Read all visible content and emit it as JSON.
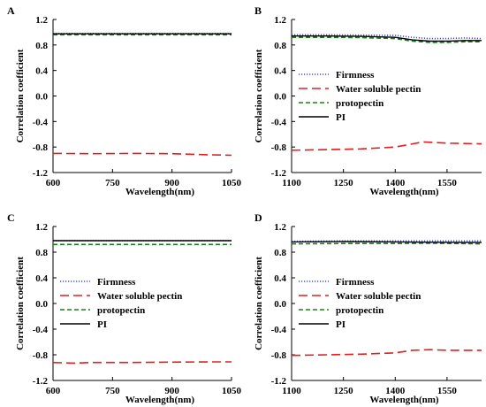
{
  "chart_data": [
    {
      "type": "line",
      "panel_label": "A",
      "xlabel": "Wavelength(nm)",
      "ylabel": "Correlation coefficient",
      "xlim": [
        600,
        1050
      ],
      "ylim": [
        -1.2,
        1.2
      ],
      "xticks": [
        "600",
        "750",
        "900",
        "1050"
      ],
      "yticks": [
        "-1.2",
        "-0.8",
        "-0.4",
        "0.0",
        "0.4",
        "0.8",
        "1.2"
      ],
      "legend": false,
      "series": [
        {
          "name": "Firmness",
          "color": "#4a4ad6",
          "dash": "dotted",
          "x": [
            600,
            750,
            900,
            1050
          ],
          "y": [
            0.98,
            0.98,
            0.98,
            0.98
          ]
        },
        {
          "name": "Water soluble pectin",
          "color": "#e02020",
          "dash": "longdash",
          "x": [
            600,
            700,
            800,
            900,
            980,
            1050
          ],
          "y": [
            -0.9,
            -0.905,
            -0.9,
            -0.905,
            -0.92,
            -0.93
          ]
        },
        {
          "name": "protopectin",
          "color": "#1e7a1e",
          "dash": "dashed",
          "x": [
            600,
            750,
            900,
            1050
          ],
          "y": [
            0.96,
            0.96,
            0.96,
            0.96
          ]
        },
        {
          "name": "PI",
          "color": "#000000",
          "dash": "solid",
          "x": [
            600,
            750,
            900,
            1050
          ],
          "y": [
            0.975,
            0.975,
            0.975,
            0.975
          ]
        }
      ]
    },
    {
      "type": "line",
      "panel_label": "B",
      "xlabel": "Wavelength(nm)",
      "ylabel": "Correlation coefficient",
      "xlim": [
        1100,
        1650
      ],
      "ylim": [
        -1.2,
        1.2
      ],
      "xticks": [
        "1100",
        "1250",
        "1400",
        "1550"
      ],
      "yticks": [
        "-1.2",
        "-0.8",
        "-0.4",
        "0.0",
        "0.4",
        "0.8",
        "1.2"
      ],
      "legend": true,
      "series": [
        {
          "name": "Firmness",
          "color": "#4a4ad6",
          "dash": "dotted",
          "x": [
            1100,
            1200,
            1300,
            1400,
            1450,
            1500,
            1550,
            1600,
            1650
          ],
          "y": [
            0.96,
            0.96,
            0.955,
            0.95,
            0.92,
            0.9,
            0.9,
            0.91,
            0.9
          ]
        },
        {
          "name": "Water soluble pectin",
          "color": "#e02020",
          "dash": "longdash",
          "x": [
            1100,
            1200,
            1300,
            1400,
            1450,
            1480,
            1550,
            1650
          ],
          "y": [
            -0.85,
            -0.84,
            -0.83,
            -0.8,
            -0.75,
            -0.72,
            -0.74,
            -0.75
          ]
        },
        {
          "name": "protopectin",
          "color": "#1e7a1e",
          "dash": "dashed",
          "x": [
            1100,
            1200,
            1300,
            1400,
            1450,
            1500,
            1550,
            1600,
            1650
          ],
          "y": [
            0.92,
            0.92,
            0.915,
            0.9,
            0.86,
            0.84,
            0.84,
            0.85,
            0.85
          ]
        },
        {
          "name": "PI",
          "color": "#000000",
          "dash": "solid",
          "x": [
            1100,
            1200,
            1300,
            1400,
            1450,
            1500,
            1550,
            1600,
            1650
          ],
          "y": [
            0.94,
            0.94,
            0.935,
            0.92,
            0.88,
            0.86,
            0.86,
            0.87,
            0.87
          ]
        }
      ]
    },
    {
      "type": "line",
      "panel_label": "C",
      "xlabel": "Wavelength(nm)",
      "ylabel": "Correlation coefficient",
      "xlim": [
        600,
        1050
      ],
      "ylim": [
        -1.2,
        1.2
      ],
      "xticks": [
        "600",
        "750",
        "900",
        "1050"
      ],
      "yticks": [
        "-1.2",
        "-0.8",
        "-0.4",
        "0.0",
        "0.4",
        "0.8",
        "1.2"
      ],
      "legend": true,
      "series": [
        {
          "name": "Firmness",
          "color": "#4a4ad6",
          "dash": "dotted",
          "x": [
            600,
            750,
            900,
            1050
          ],
          "y": [
            0.98,
            0.98,
            0.98,
            0.98
          ]
        },
        {
          "name": "Water soluble pectin",
          "color": "#e02020",
          "dash": "longdash",
          "x": [
            600,
            650,
            700,
            800,
            900,
            1000,
            1050
          ],
          "y": [
            -0.92,
            -0.93,
            -0.92,
            -0.92,
            -0.915,
            -0.91,
            -0.91
          ]
        },
        {
          "name": "protopectin",
          "color": "#1e7a1e",
          "dash": "dashed",
          "x": [
            600,
            750,
            900,
            1050
          ],
          "y": [
            0.92,
            0.92,
            0.92,
            0.92
          ]
        },
        {
          "name": "PI",
          "color": "#000000",
          "dash": "solid",
          "x": [
            600,
            750,
            900,
            1050
          ],
          "y": [
            0.98,
            0.98,
            0.98,
            0.98
          ]
        }
      ]
    },
    {
      "type": "line",
      "panel_label": "D",
      "xlabel": "Wavelength(nm)",
      "ylabel": "Correlation coefficient",
      "xlim": [
        1100,
        1650
      ],
      "ylim": [
        -1.2,
        1.2
      ],
      "xticks": [
        "1100",
        "1250",
        "1400",
        "1550"
      ],
      "yticks": [
        "-1.2",
        "-0.8",
        "-0.4",
        "0.0",
        "0.4",
        "0.8",
        "1.2"
      ],
      "legend": true,
      "series": [
        {
          "name": "Firmness",
          "color": "#4a4ad6",
          "dash": "dotted",
          "x": [
            1100,
            1250,
            1400,
            1500,
            1650
          ],
          "y": [
            0.97,
            0.975,
            0.975,
            0.975,
            0.975
          ]
        },
        {
          "name": "Water soluble pectin",
          "color": "#e02020",
          "dash": "longdash",
          "x": [
            1100,
            1200,
            1300,
            1400,
            1450,
            1500,
            1550,
            1650
          ],
          "y": [
            -0.81,
            -0.8,
            -0.79,
            -0.77,
            -0.73,
            -0.72,
            -0.73,
            -0.73
          ]
        },
        {
          "name": "protopectin",
          "color": "#1e7a1e",
          "dash": "dashed",
          "x": [
            1100,
            1250,
            1400,
            1500,
            1650
          ],
          "y": [
            0.93,
            0.935,
            0.935,
            0.94,
            0.93
          ]
        },
        {
          "name": "PI",
          "color": "#000000",
          "dash": "solid",
          "x": [
            1100,
            1250,
            1400,
            1500,
            1650
          ],
          "y": [
            0.96,
            0.965,
            0.96,
            0.955,
            0.95
          ]
        }
      ]
    }
  ]
}
